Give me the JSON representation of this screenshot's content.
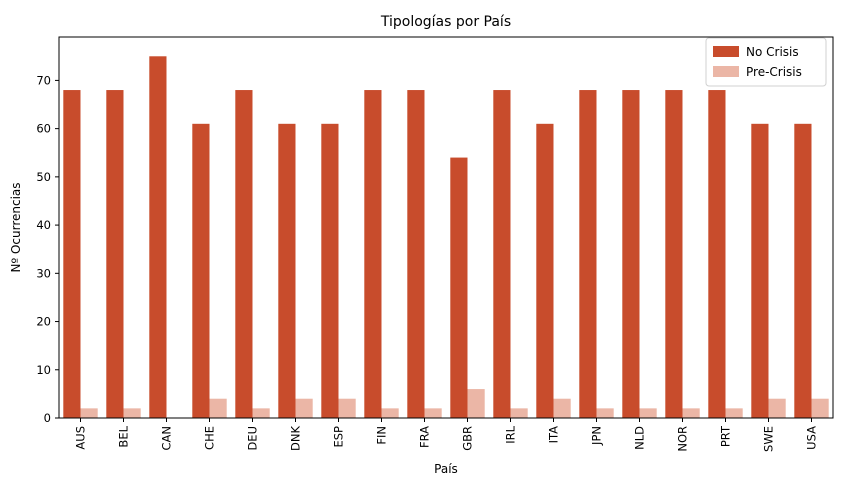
{
  "chart_data": {
    "type": "bar",
    "title": "Tipologías por País",
    "xlabel": "País",
    "ylabel": "Nº Ocurrencias",
    "categories": [
      "AUS",
      "BEL",
      "CAN",
      "CHE",
      "DEU",
      "DNK",
      "ESP",
      "FIN",
      "FRA",
      "GBR",
      "IRL",
      "ITA",
      "JPN",
      "NLD",
      "NOR",
      "PRT",
      "SWE",
      "USA"
    ],
    "series": [
      {
        "name": "No Crisis",
        "color": "#c84c2c",
        "values": [
          68,
          68,
          75,
          61,
          68,
          61,
          61,
          68,
          68,
          54,
          68,
          61,
          68,
          68,
          68,
          68,
          61,
          61
        ]
      },
      {
        "name": "Pre-Crisis",
        "color": "#ebb6a6",
        "values": [
          2,
          2,
          0,
          4,
          2,
          4,
          4,
          2,
          2,
          6,
          2,
          4,
          2,
          2,
          2,
          2,
          4,
          4
        ]
      }
    ],
    "ylim": [
      0,
      79
    ],
    "yticks": [
      0,
      10,
      20,
      30,
      40,
      50,
      60,
      70
    ],
    "grid": false,
    "legend_position": "top-right"
  }
}
